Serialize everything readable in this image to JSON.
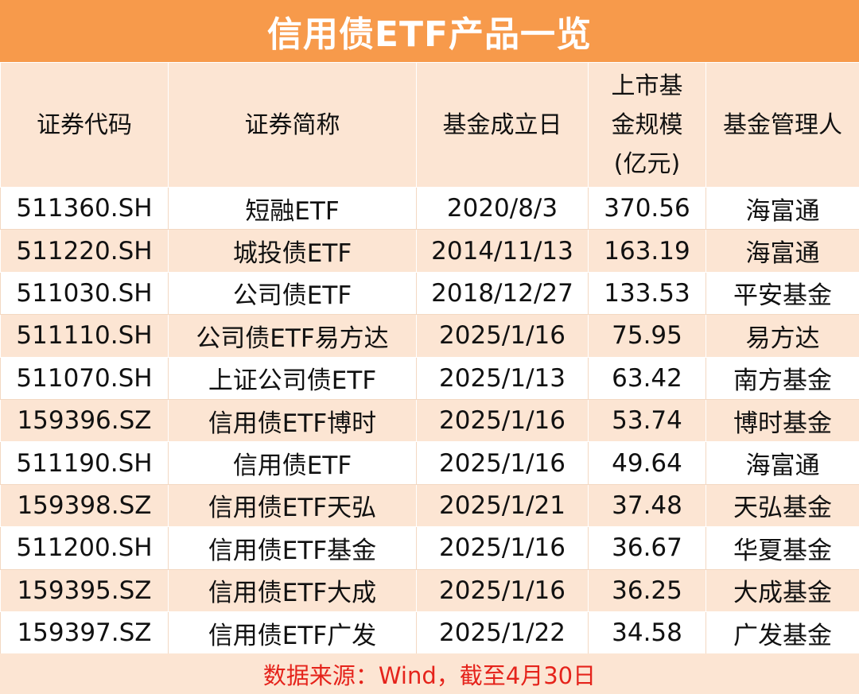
{
  "title": "信用债ETF产品一览",
  "headers": {
    "code": "证券代码",
    "name": "证券简称",
    "inception": "基金成立日",
    "scale_line1": "上市基",
    "scale_line2": "金规模",
    "scale_line3": "(亿元)",
    "manager": "基金管理人"
  },
  "rows": [
    {
      "code": "511360.SH",
      "name": "短融ETF",
      "inception": "2020/8/3",
      "scale": "370.56",
      "manager": "海富通"
    },
    {
      "code": "511220.SH",
      "name": "城投债ETF",
      "inception": "2014/11/13",
      "scale": "163.19",
      "manager": "海富通"
    },
    {
      "code": "511030.SH",
      "name": "公司债ETF",
      "inception": "2018/12/27",
      "scale": "133.53",
      "manager": "平安基金"
    },
    {
      "code": "511110.SH",
      "name": "公司债ETF易方达",
      "inception": "2025/1/16",
      "scale": "75.95",
      "manager": "易方达"
    },
    {
      "code": "511070.SH",
      "name": "上证公司债ETF",
      "inception": "2025/1/13",
      "scale": "63.42",
      "manager": "南方基金"
    },
    {
      "code": "159396.SZ",
      "name": "信用债ETF博时",
      "inception": "2025/1/16",
      "scale": "53.74",
      "manager": "博时基金"
    },
    {
      "code": "511190.SH",
      "name": "信用债ETF",
      "inception": "2025/1/16",
      "scale": "49.64",
      "manager": "海富通"
    },
    {
      "code": "159398.SZ",
      "name": "信用债ETF天弘",
      "inception": "2025/1/21",
      "scale": "37.48",
      "manager": "天弘基金"
    },
    {
      "code": "511200.SH",
      "name": "信用债ETF基金",
      "inception": "2025/1/16",
      "scale": "36.67",
      "manager": "华夏基金"
    },
    {
      "code": "159395.SZ",
      "name": "信用债ETF大成",
      "inception": "2025/1/16",
      "scale": "36.25",
      "manager": "大成基金"
    },
    {
      "code": "159397.SZ",
      "name": "信用债ETF广发",
      "inception": "2025/1/22",
      "scale": "34.58",
      "manager": "广发基金"
    }
  ],
  "footer": "数据来源：Wind，截至4月30日",
  "colors": {
    "title_bg": "#F79A4B",
    "band": "#FCE5D3",
    "footer_text": "#E5231B"
  }
}
